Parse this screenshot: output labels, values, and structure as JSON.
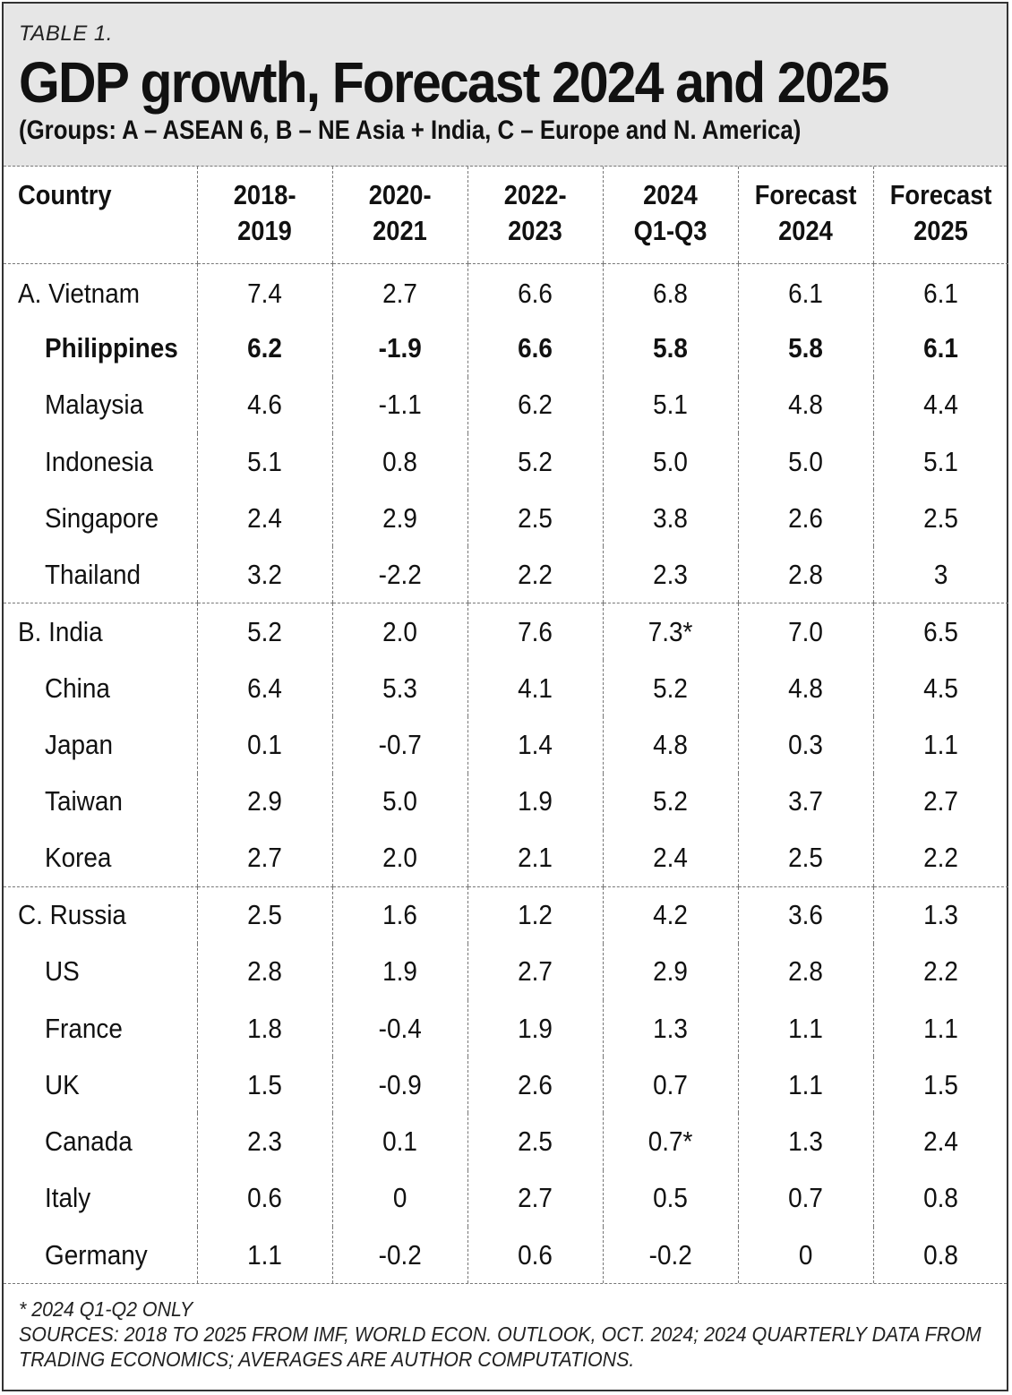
{
  "header": {
    "label": "TABLE 1.",
    "title": "GDP growth, Forecast 2024 and 2025",
    "subtitle": "(Groups: A – ASEAN 6, B – NE Asia + India, C – Europe and N. America)"
  },
  "columns": [
    [
      "Country"
    ],
    [
      "2018-",
      "2019"
    ],
    [
      "2020-",
      "2021"
    ],
    [
      "2022-",
      "2023"
    ],
    [
      "2024",
      "Q1-Q3"
    ],
    [
      "Forecast",
      "2024"
    ],
    [
      "Forecast",
      "2025"
    ]
  ],
  "groups": [
    {
      "rows": [
        {
          "country": "A. Vietnam",
          "indent": false,
          "bold": false,
          "values": [
            "7.4",
            "2.7",
            "6.6",
            "6.8",
            "6.1",
            "6.1"
          ]
        },
        {
          "country": "Philippines",
          "indent": true,
          "bold": true,
          "values": [
            "6.2",
            "-1.9",
            "6.6",
            "5.8",
            "5.8",
            "6.1"
          ]
        },
        {
          "country": "Malaysia",
          "indent": true,
          "bold": false,
          "values": [
            "4.6",
            "-1.1",
            "6.2",
            "5.1",
            "4.8",
            "4.4"
          ]
        },
        {
          "country": "Indonesia",
          "indent": true,
          "bold": false,
          "values": [
            "5.1",
            "0.8",
            "5.2",
            "5.0",
            "5.0",
            "5.1"
          ]
        },
        {
          "country": "Singapore",
          "indent": true,
          "bold": false,
          "values": [
            "2.4",
            "2.9",
            "2.5",
            "3.8",
            "2.6",
            "2.5"
          ]
        },
        {
          "country": "Thailand",
          "indent": true,
          "bold": false,
          "values": [
            "3.2",
            "-2.2",
            "2.2",
            "2.3",
            "2.8",
            "3"
          ]
        }
      ]
    },
    {
      "rows": [
        {
          "country": "B. India",
          "indent": false,
          "bold": false,
          "values": [
            "5.2",
            "2.0",
            "7.6",
            "7.3*",
            "7.0",
            "6.5"
          ]
        },
        {
          "country": "China",
          "indent": true,
          "bold": false,
          "values": [
            "6.4",
            "5.3",
            "4.1",
            "5.2",
            "4.8",
            "4.5"
          ]
        },
        {
          "country": "Japan",
          "indent": true,
          "bold": false,
          "values": [
            "0.1",
            "-0.7",
            "1.4",
            "4.8",
            "0.3",
            "1.1"
          ]
        },
        {
          "country": "Taiwan",
          "indent": true,
          "bold": false,
          "values": [
            "2.9",
            "5.0",
            "1.9",
            "5.2",
            "3.7",
            "2.7"
          ]
        },
        {
          "country": "Korea",
          "indent": true,
          "bold": false,
          "values": [
            "2.7",
            "2.0",
            "2.1",
            "2.4",
            "2.5",
            "2.2"
          ]
        }
      ]
    },
    {
      "rows": [
        {
          "country": "C. Russia",
          "indent": false,
          "bold": false,
          "values": [
            "2.5",
            "1.6",
            "1.2",
            "4.2",
            "3.6",
            "1.3"
          ]
        },
        {
          "country": "US",
          "indent": true,
          "bold": false,
          "values": [
            "2.8",
            "1.9",
            "2.7",
            "2.9",
            "2.8",
            "2.2"
          ]
        },
        {
          "country": "France",
          "indent": true,
          "bold": false,
          "values": [
            "1.8",
            "-0.4",
            "1.9",
            "1.3",
            "1.1",
            "1.1"
          ]
        },
        {
          "country": "UK",
          "indent": true,
          "bold": false,
          "values": [
            "1.5",
            "-0.9",
            "2.6",
            "0.7",
            "1.1",
            "1.5"
          ]
        },
        {
          "country": "Canada",
          "indent": true,
          "bold": false,
          "values": [
            "2.3",
            "0.1",
            "2.5",
            "0.7*",
            "1.3",
            "2.4"
          ]
        },
        {
          "country": "Italy",
          "indent": true,
          "bold": false,
          "values": [
            "0.6",
            "0",
            "2.7",
            "0.5",
            "0.7",
            "0.8"
          ]
        },
        {
          "country": "Germany",
          "indent": true,
          "bold": false,
          "values": [
            "1.1",
            "-0.2",
            "0.6",
            "-0.2",
            "0",
            "0.8"
          ]
        }
      ]
    }
  ],
  "notes": [
    "* 2024 Q1-Q2 ONLY",
    "SOURCES: 2018 TO 2025 FROM IMF, WORLD ECON. OUTLOOK, OCT. 2024; 2024 QUARTERLY DATA FROM",
    "TRADING ECONOMICS; AVERAGES ARE AUTHOR COMPUTATIONS."
  ]
}
